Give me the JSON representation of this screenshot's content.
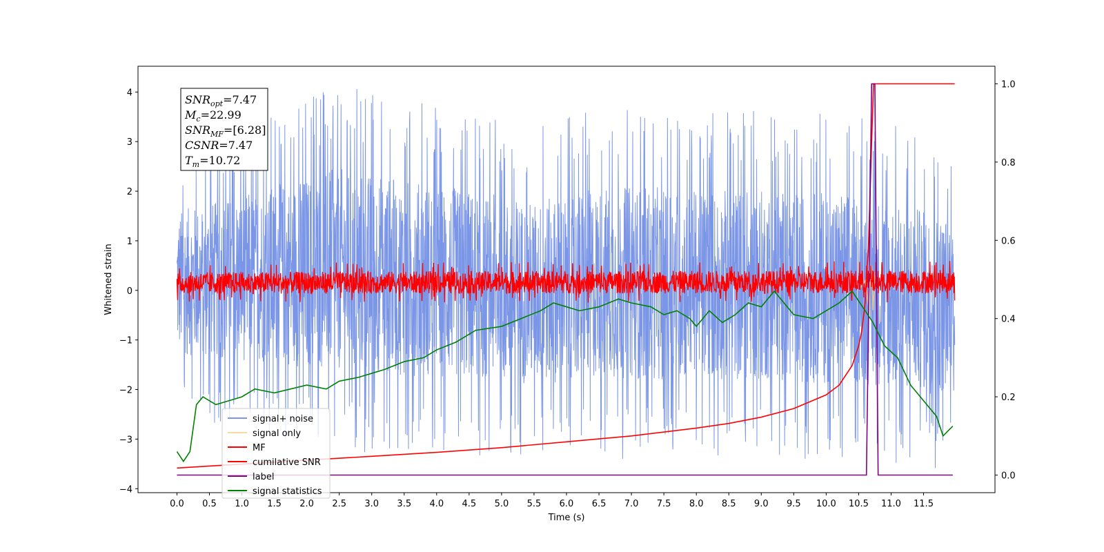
{
  "chart_data": {
    "type": "line",
    "xlabel": "Time (s)",
    "ylabel": "Whitened strain",
    "xlim": [
      -0.6,
      12.6
    ],
    "ylim_left": [
      -4.08,
      4.52
    ],
    "ylim_right": [
      -0.045,
      1.045
    ],
    "x_ticks": [
      0.0,
      0.5,
      1.0,
      1.5,
      2.0,
      2.5,
      3.0,
      3.5,
      4.0,
      4.5,
      5.0,
      5.5,
      6.0,
      6.5,
      7.0,
      7.5,
      8.0,
      8.5,
      9.0,
      9.5,
      10.0,
      10.5,
      11.0,
      11.5
    ],
    "x_tick_labels": [
      "0.0",
      "0.5",
      "1.0",
      "1.5",
      "2.0",
      "2.5",
      "3.0",
      "3.5",
      "4.0",
      "4.5",
      "5.0",
      "5.5",
      "6.0",
      "6.5",
      "7.0",
      "7.5",
      "8.0",
      "8.5",
      "9.0",
      "9.5",
      "10.0",
      "10.5",
      "11.0",
      "11.5"
    ],
    "y_left_ticks": [
      -4,
      -3,
      -2,
      -1,
      0,
      1,
      2,
      3,
      4
    ],
    "y_left_tick_labels": [
      "−4",
      "−3",
      "−2",
      "−1",
      "0",
      "1",
      "2",
      "3",
      "4"
    ],
    "y_right_ticks": [
      0.0,
      0.2,
      0.4,
      0.6,
      0.8,
      1.0
    ],
    "y_right_tick_labels": [
      "0.0",
      "0.2",
      "0.4",
      "0.6",
      "0.8",
      "1.0"
    ],
    "grid": false,
    "legend_placement": "lower-left",
    "annotation_lines": [
      {
        "sym": "SNR",
        "sub": "opt",
        "value": "=7.47"
      },
      {
        "sym": "M",
        "sub": "c",
        "value": "=22.99"
      },
      {
        "sym": "SNR",
        "sub": "MF",
        "value": "=[6.28]"
      },
      {
        "sym": "CSNR",
        "sub": "",
        "value": "=7.47"
      },
      {
        "sym": "T",
        "sub": "m",
        "value": "=10.72"
      }
    ],
    "series": [
      {
        "name": "signal+ noise",
        "axis": "left",
        "color": "#7b96e6",
        "style": "noise",
        "x_range": [
          0.0,
          11.98
        ],
        "envelope_upper": {
          "x": [
            0.0,
            2.5,
            5.5,
            6.6,
            10.7,
            11.98
          ],
          "y": [
            2.8,
            4.15,
            3.3,
            3.7,
            3.55,
            2.9
          ]
        },
        "envelope_lower": {
          "x": [
            0.0,
            2.5,
            5.5,
            9.0,
            11.8,
            11.98
          ],
          "y": [
            -2.5,
            -3.3,
            -3.4,
            -3.4,
            -3.6,
            -2.5
          ]
        }
      },
      {
        "name": "signal only",
        "axis": "left",
        "color": "#f7cf85",
        "x": [
          10.5,
          10.6,
          10.65,
          10.7,
          10.72,
          10.75,
          10.8
        ],
        "y": [
          0.0,
          0.2,
          -0.3,
          0.5,
          -0.4,
          0.3,
          0.0
        ]
      },
      {
        "name": "MF",
        "axis": "left",
        "color": "#ff0000",
        "style": "noise",
        "x_range": [
          0.0,
          11.98
        ],
        "envelope_upper": {
          "x": [
            0.0,
            11.98
          ],
          "y": [
            0.55,
            0.6
          ]
        },
        "envelope_lower": {
          "x": [
            0.0,
            11.98
          ],
          "y": [
            -0.25,
            -0.25
          ]
        }
      },
      {
        "name": "cumilative SNR",
        "axis": "right",
        "color": "#ff0000",
        "x": [
          0.0,
          1.0,
          2.0,
          3.0,
          4.0,
          5.0,
          6.0,
          7.0,
          8.0,
          8.5,
          9.0,
          9.5,
          10.0,
          10.2,
          10.4,
          10.5,
          10.55,
          10.6,
          10.65,
          10.7,
          10.73,
          10.8,
          11.98
        ],
        "y": [
          0.018,
          0.028,
          0.038,
          0.048,
          0.058,
          0.07,
          0.085,
          0.1,
          0.12,
          0.132,
          0.148,
          0.17,
          0.205,
          0.23,
          0.28,
          0.33,
          0.37,
          0.44,
          0.58,
          0.85,
          1.0,
          1.0,
          1.0
        ]
      },
      {
        "name": "label",
        "axis": "right",
        "color": "#800080",
        "x": [
          0.0,
          10.62,
          10.7,
          10.75,
          10.8,
          11.95
        ],
        "y": [
          0.0,
          0.0,
          1.0,
          1.0,
          0.0,
          0.0
        ]
      },
      {
        "name": "signal statistics",
        "axis": "right",
        "color": "#008000",
        "x": [
          0.0,
          0.1,
          0.2,
          0.3,
          0.4,
          0.5,
          0.6,
          0.8,
          1.0,
          1.2,
          1.5,
          2.0,
          2.3,
          2.5,
          2.8,
          3.0,
          3.2,
          3.5,
          3.8,
          4.0,
          4.3,
          4.6,
          5.0,
          5.3,
          5.6,
          5.8,
          6.0,
          6.2,
          6.5,
          6.8,
          7.0,
          7.3,
          7.5,
          7.7,
          7.9,
          8.0,
          8.2,
          8.4,
          8.6,
          8.8,
          9.0,
          9.2,
          9.5,
          9.8,
          10.0,
          10.2,
          10.4,
          10.6,
          10.72,
          10.9,
          11.1,
          11.3,
          11.5,
          11.7,
          11.8,
          11.95
        ],
        "y": [
          0.06,
          0.035,
          0.06,
          0.18,
          0.2,
          0.19,
          0.18,
          0.19,
          0.2,
          0.22,
          0.21,
          0.23,
          0.22,
          0.24,
          0.25,
          0.26,
          0.27,
          0.29,
          0.3,
          0.32,
          0.34,
          0.37,
          0.38,
          0.4,
          0.42,
          0.44,
          0.43,
          0.42,
          0.43,
          0.45,
          0.44,
          0.43,
          0.41,
          0.42,
          0.4,
          0.38,
          0.42,
          0.39,
          0.41,
          0.44,
          0.43,
          0.47,
          0.41,
          0.4,
          0.42,
          0.44,
          0.47,
          0.42,
          0.39,
          0.33,
          0.3,
          0.23,
          0.19,
          0.15,
          0.1,
          0.125
        ]
      }
    ]
  }
}
